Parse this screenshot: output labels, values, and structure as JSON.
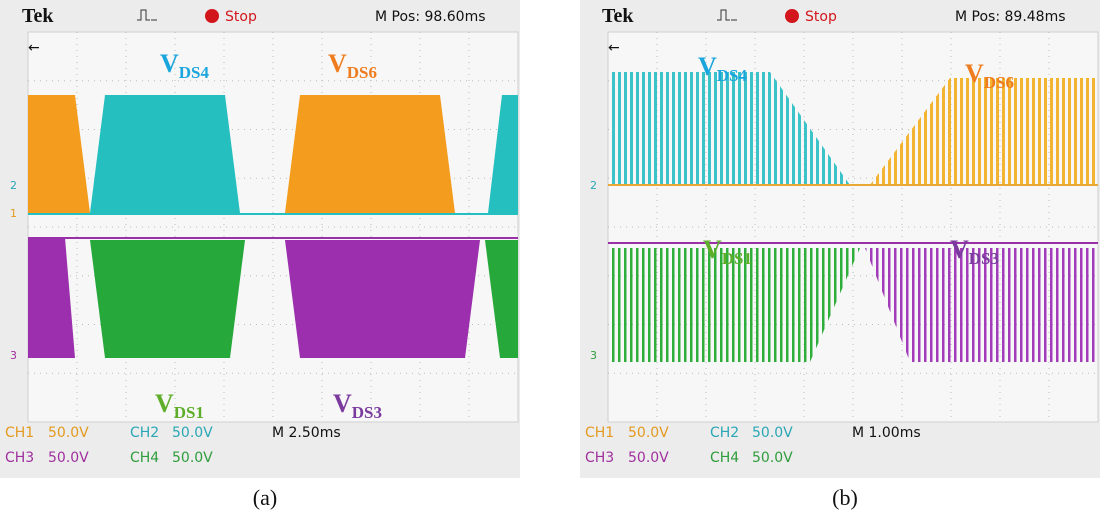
{
  "panels": [
    {
      "header": {
        "brand": "Tek",
        "state": "Stop",
        "position": "M Pos: 98.60ms"
      },
      "traces": [
        {
          "main": "V",
          "sub": "DS4"
        },
        {
          "main": "V",
          "sub": "DS6"
        },
        {
          "main": "V",
          "sub": "DS1"
        },
        {
          "main": "V",
          "sub": "DS3"
        }
      ],
      "channels": [
        "CH1",
        "50.0V",
        "CH2",
        "50.0V",
        "CH3",
        "50.0V",
        "CH4",
        "50.0V"
      ],
      "timebase": "M 2.50ms",
      "markers": [
        "2",
        "1",
        "3"
      ],
      "caption": "(a)"
    },
    {
      "header": {
        "brand": "Tek",
        "state": "Stop",
        "position": "M Pos: 89.48ms"
      },
      "traces": [
        {
          "main": "V",
          "sub": "DS4"
        },
        {
          "main": "V",
          "sub": "DS6"
        },
        {
          "main": "V",
          "sub": "DS1"
        },
        {
          "main": "V",
          "sub": "DS3"
        }
      ],
      "channels": [
        "CH1",
        "50.0V",
        "CH2",
        "50.0V",
        "CH3",
        "50.0V",
        "CH4",
        "50.0V"
      ],
      "timebase": "M 1.00ms",
      "markers": [
        "2",
        "3"
      ],
      "caption": "(b)"
    }
  ]
}
